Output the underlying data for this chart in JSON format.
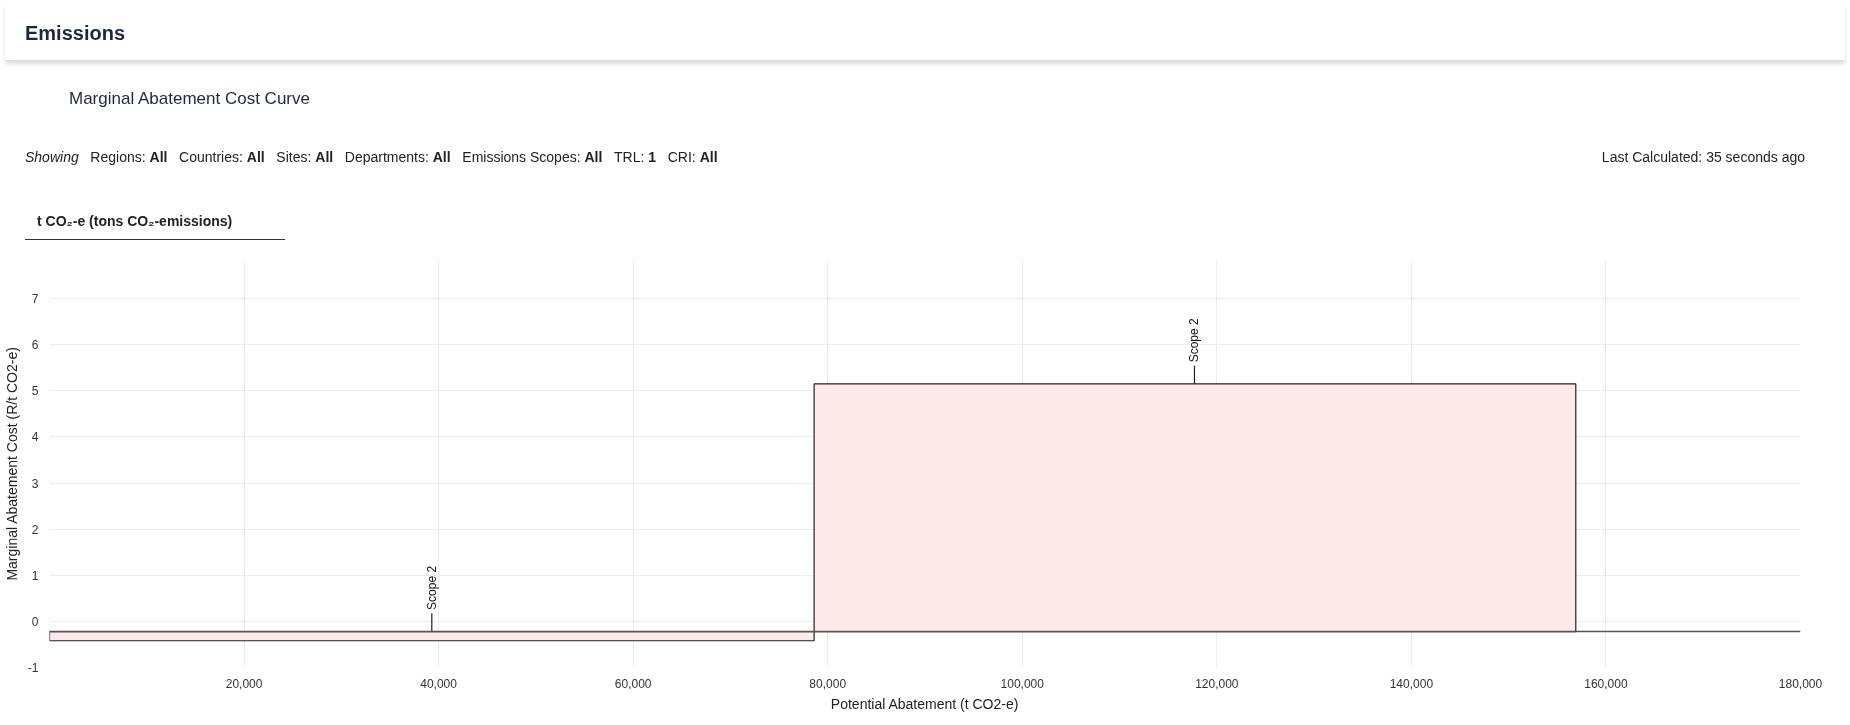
{
  "chart_data": {
    "type": "histogram",
    "title": "Emissions",
    "subtitle": "Marginal Abatement Cost Curve",
    "xlabel": "Potential Abatement (t CO2-e)",
    "ylabel": "Marginal Abatement Cost (R/t CO2-e)",
    "bins": [
      0,
      78600,
      156900
    ],
    "values": [
      -0.2,
      5.37
    ],
    "base": [
      -0.22,
      -0.22
    ],
    "color": "#fde8ea",
    "xlim": [
      0,
      180000
    ],
    "xticks": [
      {
        "value": 20000,
        "label": "20,000"
      },
      {
        "value": 40000,
        "label": "40,000"
      },
      {
        "value": 60000,
        "label": "60,000"
      },
      {
        "value": 80000,
        "label": "80,000"
      },
      {
        "value": 100000,
        "label": "100,000"
      },
      {
        "value": 120000,
        "label": "120,000"
      },
      {
        "value": 140000,
        "label": "140,000"
      },
      {
        "value": 160000,
        "label": "160,000"
      },
      {
        "value": 180000,
        "label": "180,000"
      }
    ],
    "ylim": [
      -1,
      7.85
    ],
    "yticks": [
      -1,
      0,
      1,
      2,
      3,
      4,
      5,
      6,
      7
    ],
    "grid": true,
    "ref_lines": [
      {
        "axis": "y",
        "value": -0.22,
        "color": "#555555"
      }
    ],
    "annotations": [
      "Showing",
      "Regions: All",
      "Countries: All",
      "Sites: All",
      "Departments: All",
      "Emissions Scopes: All",
      "TRL: 1",
      "CRI: All",
      "Last Calculated: 35 seconds ago",
      "t CO₂-e (tons CO₂-emissions)",
      {
        "text": "Scope 2",
        "x": 39300,
        "y": -0.22
      },
      {
        "text": "Scope 2",
        "x": 117700,
        "y": 5.15
      }
    ]
  }
}
